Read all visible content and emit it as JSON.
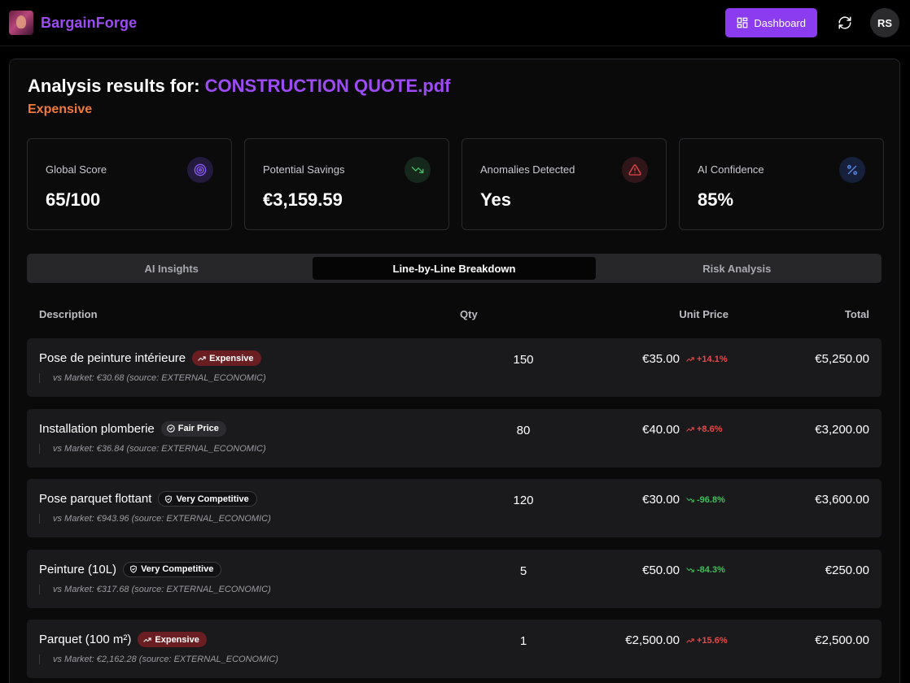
{
  "header": {
    "brand": "BargainForge",
    "dashboard_label": "Dashboard",
    "avatar_initials": "RS"
  },
  "analysis": {
    "title_prefix": "Analysis results for:",
    "file_name": "CONSTRUCTION QUOTE.pdf",
    "verdict": "Expensive"
  },
  "stats": [
    {
      "label": "Global Score",
      "value": "65/100",
      "icon": "target-icon"
    },
    {
      "label": "Potential Savings",
      "value": "€3,159.59",
      "icon": "trending-down-icon"
    },
    {
      "label": "Anomalies Detected",
      "value": "Yes",
      "icon": "warning-icon"
    },
    {
      "label": "AI Confidence",
      "value": "85%",
      "icon": "percent-icon"
    }
  ],
  "tabs": [
    {
      "label": "AI Insights",
      "active": false
    },
    {
      "label": "Line-by-Line Breakdown",
      "active": true
    },
    {
      "label": "Risk Analysis",
      "active": false
    }
  ],
  "table": {
    "columns": {
      "description": "Description",
      "qty": "Qty",
      "unit_price": "Unit Price",
      "total": "Total"
    },
    "rows": [
      {
        "name": "Pose de peinture intérieure",
        "badge": "Expensive",
        "badge_type": "expensive",
        "market": "vs Market: €30.68 (source: EXTERNAL_ECONOMIC)",
        "qty": "150",
        "unit_price": "€35.00",
        "delta": "+14.1%",
        "delta_dir": "up",
        "total": "€5,250.00"
      },
      {
        "name": "Installation plomberie",
        "badge": "Fair Price",
        "badge_type": "fair",
        "market": "vs Market: €36.84 (source: EXTERNAL_ECONOMIC)",
        "qty": "80",
        "unit_price": "€40.00",
        "delta": "+8.6%",
        "delta_dir": "up",
        "total": "€3,200.00"
      },
      {
        "name": "Pose parquet flottant",
        "badge": "Very Competitive",
        "badge_type": "competitive",
        "market": "vs Market: €943.96 (source: EXTERNAL_ECONOMIC)",
        "qty": "120",
        "unit_price": "€30.00",
        "delta": "-96.8%",
        "delta_dir": "down",
        "total": "€3,600.00"
      },
      {
        "name": "Peinture (10L)",
        "badge": "Very Competitive",
        "badge_type": "competitive",
        "market": "vs Market: €317.68 (source: EXTERNAL_ECONOMIC)",
        "qty": "5",
        "unit_price": "€50.00",
        "delta": "-84.3%",
        "delta_dir": "down",
        "total": "€250.00"
      },
      {
        "name": "Parquet (100 m²)",
        "badge": "Expensive",
        "badge_type": "expensive",
        "market": "vs Market: €2,162.28 (source: EXTERNAL_ECONOMIC)",
        "qty": "1",
        "unit_price": "€2,500.00",
        "delta": "+15.6%",
        "delta_dir": "up",
        "total": "€2,500.00"
      }
    ]
  },
  "colors": {
    "accent": "#8b3cf0",
    "brand": "#9d4bf5",
    "verdict": "#f07a3a",
    "up": "#e84848",
    "down": "#3fbf5c"
  }
}
